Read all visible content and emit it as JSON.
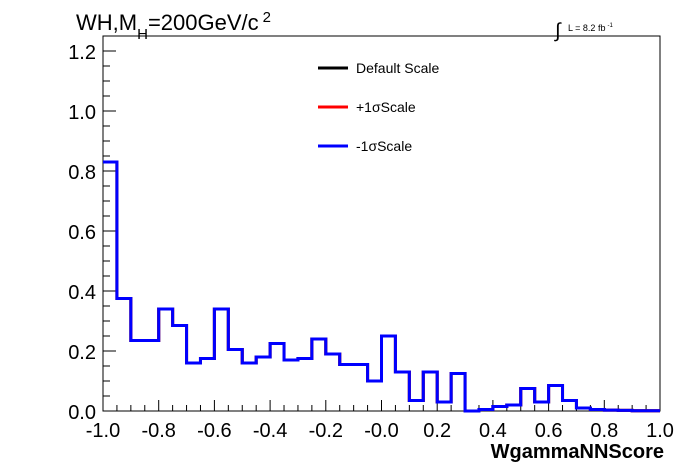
{
  "chart_data": {
    "type": "line",
    "title": "WH,M",
    "title_sub": "H",
    "title_rest": "=200GeV/c",
    "title_sup": "2",
    "lumi_prefix": "∫",
    "lumi_text": "L = 8.2 fb",
    "lumi_sup": "-1",
    "xlabel": "WgammaNNScore",
    "xlim": [
      -1.0,
      1.0
    ],
    "ylim": [
      0.0,
      1.25
    ],
    "x_ticks": [
      "-1.0",
      "-0.8",
      "-0.6",
      "-0.4",
      "-0.2",
      "-0.0",
      "0.2",
      "0.4",
      "0.6",
      "0.8",
      "1.0"
    ],
    "x_tick_values": [
      -1.0,
      -0.8,
      -0.6,
      -0.4,
      -0.2,
      0.0,
      0.2,
      0.4,
      0.6,
      0.8,
      1.0
    ],
    "y_ticks": [
      "0.0",
      "0.2",
      "0.4",
      "0.6",
      "0.8",
      "1.0",
      "1.2"
    ],
    "y_tick_values": [
      0.0,
      0.2,
      0.4,
      0.6,
      0.8,
      1.0,
      1.2
    ],
    "legend_placement": "top-center",
    "bin_edges": [
      -1.0,
      -0.95,
      -0.9,
      -0.85,
      -0.8,
      -0.75,
      -0.7,
      -0.65,
      -0.6,
      -0.55,
      -0.5,
      -0.45,
      -0.4,
      -0.35,
      -0.3,
      -0.25,
      -0.2,
      -0.15,
      -0.1,
      -0.05,
      0.0,
      0.05,
      0.1,
      0.15,
      0.2,
      0.25,
      0.3,
      0.35,
      0.4,
      0.45,
      0.5,
      0.55,
      0.6,
      0.65,
      0.7,
      0.75,
      0.8,
      0.85,
      0.9,
      0.95,
      1.0
    ],
    "series": [
      {
        "name": "Default Scale",
        "color": "#000000",
        "values": [
          0.83,
          0.375,
          0.235,
          0.235,
          0.34,
          0.285,
          0.16,
          0.175,
          0.34,
          0.205,
          0.16,
          0.18,
          0.225,
          0.17,
          0.175,
          0.24,
          0.19,
          0.155,
          0.155,
          0.1,
          0.25,
          0.13,
          0.035,
          0.13,
          0.03,
          0.125,
          0.0,
          0.005,
          0.015,
          0.02,
          0.075,
          0.03,
          0.085,
          0.035,
          0.01,
          0.005,
          0.003,
          0.002,
          0.001,
          0.001
        ]
      },
      {
        "name": "+1σScale",
        "color": "#ff0000",
        "values": [
          0.83,
          0.375,
          0.235,
          0.235,
          0.34,
          0.285,
          0.16,
          0.175,
          0.34,
          0.205,
          0.16,
          0.18,
          0.225,
          0.17,
          0.175,
          0.24,
          0.19,
          0.155,
          0.155,
          0.1,
          0.25,
          0.13,
          0.035,
          0.13,
          0.03,
          0.125,
          0.0,
          0.005,
          0.015,
          0.02,
          0.075,
          0.03,
          0.085,
          0.035,
          0.01,
          0.005,
          0.003,
          0.002,
          0.001,
          0.001
        ]
      },
      {
        "name": "-1σScale",
        "color": "#0000ff",
        "values": [
          0.83,
          0.375,
          0.235,
          0.235,
          0.34,
          0.285,
          0.16,
          0.175,
          0.34,
          0.205,
          0.16,
          0.18,
          0.225,
          0.17,
          0.175,
          0.24,
          0.19,
          0.155,
          0.155,
          0.1,
          0.25,
          0.13,
          0.035,
          0.13,
          0.03,
          0.125,
          0.0,
          0.005,
          0.015,
          0.02,
          0.075,
          0.03,
          0.085,
          0.035,
          0.01,
          0.005,
          0.003,
          0.002,
          0.001,
          0.001
        ]
      }
    ]
  }
}
